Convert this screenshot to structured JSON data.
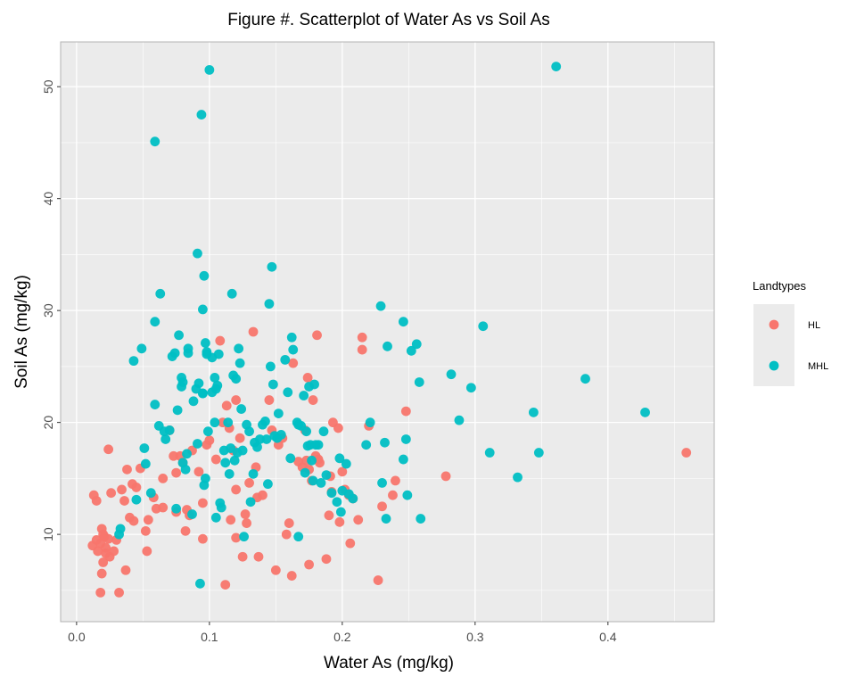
{
  "chart_data": {
    "type": "scatter",
    "title": "Figure #.  Scatterplot of Water As vs Soil As",
    "xlabel": "Water As (mg/kg)",
    "ylabel": "Soil As (mg/kg)",
    "xlim": [
      -0.012,
      0.48
    ],
    "ylim": [
      2.2,
      54.0
    ],
    "x_ticks": [
      0.0,
      0.1,
      0.2,
      0.3,
      0.4
    ],
    "x_tick_labels": [
      "0.0",
      "0.1",
      "0.2",
      "0.3",
      "0.4"
    ],
    "y_ticks": [
      10,
      20,
      30,
      40,
      50
    ],
    "y_tick_labels": [
      "10",
      "20",
      "30",
      "40",
      "50"
    ],
    "grid": true,
    "legend": {
      "title": "Landtypes",
      "position": "right"
    },
    "colors": {
      "HL": "#F8766D",
      "MHL": "#00BFC4",
      "panel": "#EBEBEB",
      "grid": "#FFFFFF"
    },
    "series": [
      {
        "name": "HL",
        "color": "#F8766D",
        "points": [
          [
            0.012,
            9.0
          ],
          [
            0.015,
            9.5
          ],
          [
            0.016,
            8.5
          ],
          [
            0.018,
            9.2
          ],
          [
            0.019,
            10.5
          ],
          [
            0.02,
            10.0
          ],
          [
            0.021,
            9.8
          ],
          [
            0.022,
            8.3
          ],
          [
            0.024,
            9.6
          ],
          [
            0.025,
            8.0
          ],
          [
            0.013,
            13.5
          ],
          [
            0.015,
            13.0
          ],
          [
            0.018,
            4.8
          ],
          [
            0.019,
            6.5
          ],
          [
            0.02,
            7.5
          ],
          [
            0.022,
            8.8
          ],
          [
            0.024,
            17.6
          ],
          [
            0.026,
            13.7
          ],
          [
            0.028,
            8.5
          ],
          [
            0.03,
            9.5
          ],
          [
            0.032,
            4.8
          ],
          [
            0.034,
            14.0
          ],
          [
            0.036,
            13.0
          ],
          [
            0.037,
            6.8
          ],
          [
            0.038,
            15.8
          ],
          [
            0.04,
            11.5
          ],
          [
            0.042,
            14.5
          ],
          [
            0.043,
            11.2
          ],
          [
            0.045,
            14.2
          ],
          [
            0.048,
            15.9
          ],
          [
            0.052,
            10.3
          ],
          [
            0.053,
            8.5
          ],
          [
            0.054,
            11.3
          ],
          [
            0.058,
            13.3
          ],
          [
            0.06,
            12.3
          ],
          [
            0.065,
            12.4
          ],
          [
            0.065,
            15.0
          ],
          [
            0.07,
            19.3
          ],
          [
            0.073,
            17.0
          ],
          [
            0.075,
            15.5
          ],
          [
            0.075,
            12.0
          ],
          [
            0.078,
            17.0
          ],
          [
            0.08,
            16.4
          ],
          [
            0.082,
            10.3
          ],
          [
            0.083,
            12.2
          ],
          [
            0.085,
            11.7
          ],
          [
            0.087,
            17.5
          ],
          [
            0.092,
            15.6
          ],
          [
            0.095,
            12.8
          ],
          [
            0.095,
            9.6
          ],
          [
            0.098,
            18.0
          ],
          [
            0.1,
            18.4
          ],
          [
            0.105,
            16.7
          ],
          [
            0.108,
            27.3
          ],
          [
            0.11,
            20.0
          ],
          [
            0.112,
            5.5
          ],
          [
            0.113,
            21.5
          ],
          [
            0.115,
            19.5
          ],
          [
            0.116,
            11.3
          ],
          [
            0.118,
            17.5
          ],
          [
            0.12,
            22.0
          ],
          [
            0.12,
            14.0
          ],
          [
            0.12,
            9.7
          ],
          [
            0.123,
            18.6
          ],
          [
            0.125,
            8.0
          ],
          [
            0.127,
            11.8
          ],
          [
            0.128,
            11.0
          ],
          [
            0.13,
            14.6
          ],
          [
            0.133,
            28.1
          ],
          [
            0.135,
            16.0
          ],
          [
            0.136,
            13.3
          ],
          [
            0.137,
            8.0
          ],
          [
            0.14,
            13.5
          ],
          [
            0.145,
            22.0
          ],
          [
            0.147,
            19.3
          ],
          [
            0.15,
            6.8
          ],
          [
            0.152,
            18.0
          ],
          [
            0.155,
            18.6
          ],
          [
            0.158,
            10.0
          ],
          [
            0.16,
            11.0
          ],
          [
            0.162,
            6.3
          ],
          [
            0.163,
            25.3
          ],
          [
            0.167,
            16.5
          ],
          [
            0.17,
            16.0
          ],
          [
            0.172,
            19.3
          ],
          [
            0.173,
            16.6
          ],
          [
            0.174,
            24.0
          ],
          [
            0.175,
            7.3
          ],
          [
            0.175,
            15.8
          ],
          [
            0.177,
            14.8
          ],
          [
            0.178,
            22.0
          ],
          [
            0.18,
            17.0
          ],
          [
            0.181,
            27.8
          ],
          [
            0.182,
            16.7
          ],
          [
            0.183,
            16.4
          ],
          [
            0.188,
            7.8
          ],
          [
            0.19,
            11.7
          ],
          [
            0.191,
            15.2
          ],
          [
            0.192,
            13.8
          ],
          [
            0.193,
            20.0
          ],
          [
            0.197,
            19.5
          ],
          [
            0.198,
            11.1
          ],
          [
            0.2,
            15.6
          ],
          [
            0.202,
            14.0
          ],
          [
            0.205,
            13.5
          ],
          [
            0.206,
            9.2
          ],
          [
            0.208,
            13.2
          ],
          [
            0.212,
            11.3
          ],
          [
            0.215,
            27.6
          ],
          [
            0.215,
            26.5
          ],
          [
            0.22,
            19.7
          ],
          [
            0.227,
            5.9
          ],
          [
            0.23,
            12.5
          ],
          [
            0.238,
            13.5
          ],
          [
            0.24,
            14.8
          ],
          [
            0.248,
            21.0
          ],
          [
            0.278,
            15.2
          ],
          [
            0.459,
            17.3
          ]
        ]
      },
      {
        "name": "MHL",
        "color": "#00BFC4",
        "points": [
          [
            0.032,
            10.0
          ],
          [
            0.033,
            10.5
          ],
          [
            0.043,
            25.5
          ],
          [
            0.045,
            13.1
          ],
          [
            0.049,
            26.6
          ],
          [
            0.051,
            17.7
          ],
          [
            0.052,
            16.3
          ],
          [
            0.056,
            13.7
          ],
          [
            0.059,
            21.6
          ],
          [
            0.059,
            29.0
          ],
          [
            0.059,
            45.1
          ],
          [
            0.062,
            19.7
          ],
          [
            0.063,
            31.5
          ],
          [
            0.066,
            19.2
          ],
          [
            0.067,
            18.5
          ],
          [
            0.07,
            19.3
          ],
          [
            0.072,
            25.9
          ],
          [
            0.074,
            26.2
          ],
          [
            0.075,
            12.3
          ],
          [
            0.076,
            21.1
          ],
          [
            0.077,
            27.8
          ],
          [
            0.079,
            23.2
          ],
          [
            0.079,
            24.0
          ],
          [
            0.08,
            23.6
          ],
          [
            0.08,
            16.4
          ],
          [
            0.082,
            15.8
          ],
          [
            0.083,
            17.2
          ],
          [
            0.084,
            26.2
          ],
          [
            0.084,
            26.6
          ],
          [
            0.087,
            11.8
          ],
          [
            0.088,
            21.9
          ],
          [
            0.09,
            23.0
          ],
          [
            0.091,
            35.1
          ],
          [
            0.091,
            18.1
          ],
          [
            0.092,
            23.5
          ],
          [
            0.093,
            5.6
          ],
          [
            0.094,
            47.5
          ],
          [
            0.095,
            30.1
          ],
          [
            0.095,
            22.6
          ],
          [
            0.095,
            22.6
          ],
          [
            0.096,
            33.1
          ],
          [
            0.096,
            14.4
          ],
          [
            0.097,
            27.1
          ],
          [
            0.097,
            15.0
          ],
          [
            0.098,
            26.3
          ],
          [
            0.098,
            26.1
          ],
          [
            0.099,
            19.2
          ],
          [
            0.1,
            51.5
          ],
          [
            0.102,
            25.8
          ],
          [
            0.102,
            22.7
          ],
          [
            0.104,
            24.0
          ],
          [
            0.104,
            20.0
          ],
          [
            0.105,
            23.0
          ],
          [
            0.105,
            11.5
          ],
          [
            0.106,
            23.3
          ],
          [
            0.107,
            26.1
          ],
          [
            0.108,
            12.8
          ],
          [
            0.109,
            12.4
          ],
          [
            0.111,
            17.5
          ],
          [
            0.112,
            16.4
          ],
          [
            0.114,
            20.0
          ],
          [
            0.115,
            15.4
          ],
          [
            0.116,
            17.7
          ],
          [
            0.117,
            31.5
          ],
          [
            0.118,
            24.2
          ],
          [
            0.119,
            16.6
          ],
          [
            0.12,
            23.9
          ],
          [
            0.121,
            17.3
          ],
          [
            0.122,
            26.6
          ],
          [
            0.123,
            25.3
          ],
          [
            0.124,
            21.2
          ],
          [
            0.125,
            17.5
          ],
          [
            0.126,
            9.8
          ],
          [
            0.128,
            19.8
          ],
          [
            0.13,
            19.2
          ],
          [
            0.131,
            12.9
          ],
          [
            0.133,
            15.4
          ],
          [
            0.134,
            18.2
          ],
          [
            0.136,
            17.8
          ],
          [
            0.138,
            18.5
          ],
          [
            0.14,
            19.8
          ],
          [
            0.142,
            20.1
          ],
          [
            0.143,
            18.5
          ],
          [
            0.144,
            14.5
          ],
          [
            0.145,
            30.6
          ],
          [
            0.146,
            25.0
          ],
          [
            0.147,
            33.9
          ],
          [
            0.148,
            23.4
          ],
          [
            0.149,
            18.8
          ],
          [
            0.151,
            18.6
          ],
          [
            0.152,
            20.8
          ],
          [
            0.154,
            18.9
          ],
          [
            0.157,
            25.6
          ],
          [
            0.159,
            22.7
          ],
          [
            0.161,
            16.8
          ],
          [
            0.162,
            27.6
          ],
          [
            0.163,
            26.5
          ],
          [
            0.166,
            20.0
          ],
          [
            0.167,
            19.8
          ],
          [
            0.167,
            9.8
          ],
          [
            0.169,
            19.7
          ],
          [
            0.171,
            22.4
          ],
          [
            0.172,
            15.5
          ],
          [
            0.173,
            19.2
          ],
          [
            0.174,
            17.9
          ],
          [
            0.175,
            23.2
          ],
          [
            0.176,
            18.0
          ],
          [
            0.177,
            16.6
          ],
          [
            0.178,
            14.8
          ],
          [
            0.179,
            23.4
          ],
          [
            0.18,
            18.0
          ],
          [
            0.182,
            18.0
          ],
          [
            0.184,
            14.6
          ],
          [
            0.186,
            19.2
          ],
          [
            0.188,
            15.3
          ],
          [
            0.192,
            13.7
          ],
          [
            0.196,
            12.9
          ],
          [
            0.198,
            16.8
          ],
          [
            0.199,
            12.0
          ],
          [
            0.2,
            13.9
          ],
          [
            0.203,
            16.3
          ],
          [
            0.205,
            13.6
          ],
          [
            0.208,
            13.2
          ],
          [
            0.218,
            18.0
          ],
          [
            0.221,
            20.0
          ],
          [
            0.229,
            30.4
          ],
          [
            0.23,
            14.6
          ],
          [
            0.232,
            18.2
          ],
          [
            0.233,
            11.4
          ],
          [
            0.234,
            26.8
          ],
          [
            0.246,
            16.7
          ],
          [
            0.246,
            29.0
          ],
          [
            0.248,
            18.5
          ],
          [
            0.249,
            13.5
          ],
          [
            0.252,
            26.4
          ],
          [
            0.256,
            27.0
          ],
          [
            0.258,
            23.6
          ],
          [
            0.259,
            11.4
          ],
          [
            0.282,
            24.3
          ],
          [
            0.288,
            20.2
          ],
          [
            0.297,
            23.1
          ],
          [
            0.306,
            28.6
          ],
          [
            0.311,
            17.3
          ],
          [
            0.332,
            15.1
          ],
          [
            0.344,
            20.9
          ],
          [
            0.348,
            17.3
          ],
          [
            0.361,
            51.8
          ],
          [
            0.383,
            23.9
          ],
          [
            0.428,
            20.9
          ]
        ]
      }
    ]
  }
}
